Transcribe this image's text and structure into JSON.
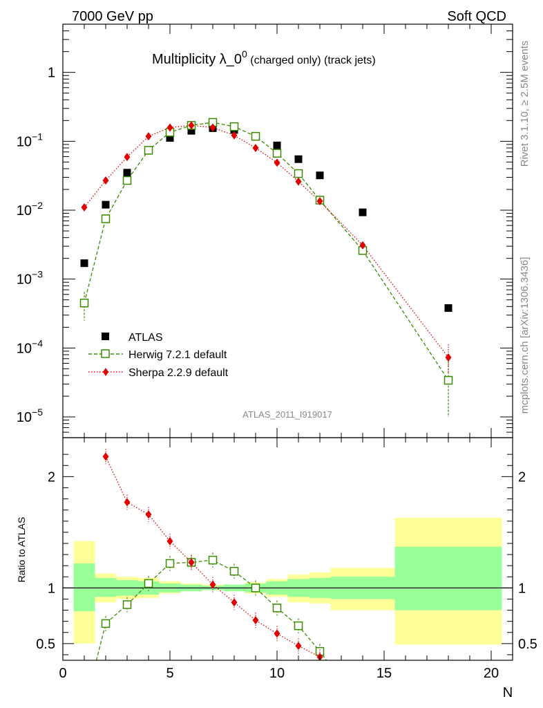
{
  "header": {
    "energy_label": "7000 GeV pp",
    "category_label": "Soft QCD"
  },
  "side_labels": {
    "rivet": "Rivet 3.1.10, ≥ 2.5M events",
    "mcplots": "mcplots.cern.ch [arXiv:1306.3436]"
  },
  "analysis_id": "ATLAS_2011_I919017",
  "chart_data": [
    {
      "type": "scatter",
      "title_main": "Multiplicity λ_0",
      "title_sup": "0",
      "title_suffix": " (charged only) (track jets)",
      "xlabel": "",
      "ylabel": "",
      "log_y": true,
      "xlim": [
        0,
        21
      ],
      "ylim": [
        5e-06,
        5
      ],
      "y_tick_labels": [
        {
          "value": 1,
          "label": "1"
        },
        {
          "value": 0.1,
          "base": "10",
          "exp": "−1"
        },
        {
          "value": 0.01,
          "base": "10",
          "exp": "−2"
        },
        {
          "value": 0.001,
          "base": "10",
          "exp": "−3"
        },
        {
          "value": 0.0001,
          "base": "10",
          "exp": "−4"
        },
        {
          "value": 1e-05,
          "base": "10",
          "exp": "−5"
        }
      ],
      "legend_position": "bottom-left",
      "series": [
        {
          "name": "ATLAS",
          "style": "data",
          "color": "#000000",
          "x": [
            1,
            2,
            3,
            4,
            5,
            6,
            7,
            8,
            9,
            10,
            11,
            12,
            14,
            18
          ],
          "y": [
            0.0017,
            0.012,
            0.035,
            0.073,
            0.112,
            0.142,
            0.155,
            0.146,
            0.118,
            0.087,
            0.055,
            0.032,
            0.0093,
            0.00038
          ]
        },
        {
          "name": "Herwig 7.2.1 default",
          "style": "dashed-open-square",
          "color": "#3a8a00",
          "x": [
            1,
            2,
            3,
            4,
            5,
            6,
            7,
            8,
            9,
            10,
            11,
            12,
            14,
            18
          ],
          "y": [
            0.00045,
            0.0075,
            0.027,
            0.074,
            0.135,
            0.17,
            0.188,
            0.163,
            0.118,
            0.067,
            0.034,
            0.014,
            0.0026,
            3.4e-05
          ],
          "yerr_low": [
            0.0002,
            0,
            0,
            0,
            0,
            0,
            0,
            0,
            0,
            0,
            0,
            0,
            0,
            2.4e-05
          ],
          "yerr_high": [
            0.0002,
            0,
            0,
            0,
            0,
            0,
            0,
            0,
            0,
            0,
            0,
            0,
            0,
            3e-05
          ]
        },
        {
          "name": "Sherpa 2.2.9 default",
          "style": "dotted-diamond",
          "color": "#e00000",
          "x": [
            1,
            2,
            3,
            4,
            5,
            6,
            7,
            8,
            9,
            10,
            11,
            12,
            14,
            18
          ],
          "y": [
            0.011,
            0.027,
            0.059,
            0.118,
            0.158,
            0.17,
            0.158,
            0.122,
            0.08,
            0.049,
            0.026,
            0.0135,
            0.0031,
            7.3e-05
          ],
          "yerr_low": [
            0,
            0,
            0,
            0,
            0,
            0,
            0,
            0,
            0,
            0,
            0,
            0,
            0,
            3e-05
          ],
          "yerr_high": [
            0,
            0,
            0,
            0,
            0,
            0,
            0,
            0,
            0,
            0,
            0,
            0,
            0,
            4e-05
          ]
        }
      ]
    },
    {
      "type": "line",
      "ylabel": "Ratio to ATLAS",
      "xlabel": "N",
      "xlim": [
        0,
        21
      ],
      "ylim": [
        0.35,
        2.35
      ],
      "x_ticks": [
        0,
        5,
        10,
        15,
        20
      ],
      "y_ticks": [
        0.5,
        1,
        2
      ],
      "reference_line": 1,
      "uncertainty_bands": [
        {
          "x0": 0.5,
          "x1": 1.5,
          "stat_lo": 0.79,
          "stat_hi": 1.22,
          "tot_lo": 0.5,
          "tot_hi": 1.42
        },
        {
          "x0": 1.5,
          "x1": 2.5,
          "stat_lo": 0.92,
          "stat_hi": 1.09,
          "tot_lo": 0.87,
          "tot_hi": 1.13
        },
        {
          "x0": 2.5,
          "x1": 3.5,
          "stat_lo": 0.93,
          "stat_hi": 1.07,
          "tot_lo": 0.9,
          "tot_hi": 1.1
        },
        {
          "x0": 3.5,
          "x1": 4.5,
          "stat_lo": 0.94,
          "stat_hi": 1.06,
          "tot_lo": 0.91,
          "tot_hi": 1.09
        },
        {
          "x0": 4.5,
          "x1": 5.5,
          "stat_lo": 0.96,
          "stat_hi": 1.04,
          "tot_lo": 0.95,
          "tot_hi": 1.06
        },
        {
          "x0": 5.5,
          "x1": 6.5,
          "stat_lo": 0.97,
          "stat_hi": 1.03,
          "tot_lo": 0.97,
          "tot_hi": 1.04
        },
        {
          "x0": 6.5,
          "x1": 7.5,
          "stat_lo": 0.98,
          "stat_hi": 1.02,
          "tot_lo": 0.98,
          "tot_hi": 1.03
        },
        {
          "x0": 7.5,
          "x1": 8.5,
          "stat_lo": 0.97,
          "stat_hi": 1.03,
          "tot_lo": 0.97,
          "tot_hi": 1.03
        },
        {
          "x0": 8.5,
          "x1": 9.5,
          "stat_lo": 0.96,
          "stat_hi": 1.04,
          "tot_lo": 0.95,
          "tot_hi": 1.05
        },
        {
          "x0": 9.5,
          "x1": 10.5,
          "stat_lo": 0.94,
          "stat_hi": 1.06,
          "tot_lo": 0.92,
          "tot_hi": 1.08
        },
        {
          "x0": 10.5,
          "x1": 11.5,
          "stat_lo": 0.92,
          "stat_hi": 1.08,
          "tot_lo": 0.87,
          "tot_hi": 1.12
        },
        {
          "x0": 11.5,
          "x1": 12.5,
          "stat_lo": 0.91,
          "stat_hi": 1.09,
          "tot_lo": 0.86,
          "tot_hi": 1.14
        },
        {
          "x0": 12.5,
          "x1": 15.5,
          "stat_lo": 0.9,
          "stat_hi": 1.1,
          "tot_lo": 0.8,
          "tot_hi": 1.18
        },
        {
          "x0": 15.5,
          "x1": 20.5,
          "stat_lo": 0.8,
          "stat_hi": 1.37,
          "tot_lo": 0.49,
          "tot_hi": 1.63
        }
      ],
      "series": [
        {
          "name": "Herwig 7.2.1 default",
          "color": "#3a8a00",
          "x": [
            2,
            3,
            4,
            5,
            6,
            7,
            8,
            9,
            10,
            11,
            12
          ],
          "y": [
            0.68,
            0.85,
            1.04,
            1.22,
            1.23,
            1.25,
            1.15,
            1.0,
            0.82,
            0.66,
            0.43
          ],
          "clipped_segment": {
            "from_x": 1.5,
            "from_y": 0.3,
            "to_x": 12.5,
            "to_y": 0.3
          }
        },
        {
          "name": "Sherpa 2.2.9 default",
          "color": "#e00000",
          "x": [
            2,
            3,
            4,
            5,
            6,
            7,
            8,
            9,
            10,
            11,
            12
          ],
          "y": [
            2.18,
            1.77,
            1.66,
            1.42,
            1.23,
            1.03,
            0.87,
            0.71,
            0.59,
            0.48,
            0.38
          ]
        }
      ]
    }
  ]
}
